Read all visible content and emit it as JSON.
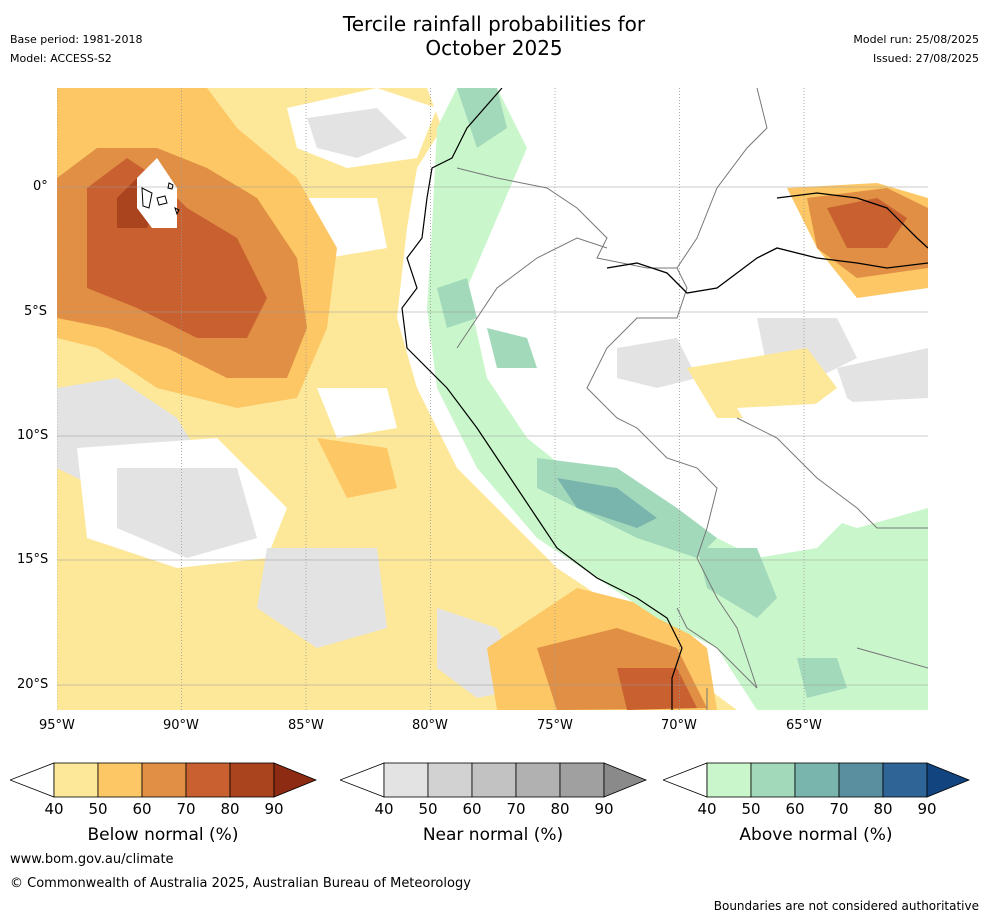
{
  "header": {
    "title_line1": "Tercile rainfall probabilities for",
    "title_line2": "October 2025",
    "base_period": "Base period: 1981-2018",
    "model": "Model: ACCESS-S2",
    "model_run": "Model run: 25/08/2025",
    "issued": "Issued: 27/08/2025"
  },
  "map": {
    "lon_labels": [
      "95°W",
      "90°W",
      "85°W",
      "80°W",
      "75°W",
      "70°W",
      "65°W"
    ],
    "lat_labels": [
      "0°",
      "5°S",
      "10°S",
      "15°S",
      "20°S"
    ]
  },
  "colorbars": [
    {
      "label": "Below normal (%)",
      "ticks": [
        "40",
        "50",
        "60",
        "70",
        "80",
        "90"
      ],
      "colors": [
        "#ffffff",
        "#fde89a",
        "#fcc764",
        "#e08f44",
        "#c8612f",
        "#a9441f",
        "#8c2a12"
      ]
    },
    {
      "label": "Near normal (%)",
      "ticks": [
        "40",
        "50",
        "60",
        "70",
        "80",
        "90"
      ],
      "colors": [
        "#ffffff",
        "#e3e3e3",
        "#d2d2d2",
        "#c2c2c2",
        "#b1b1b1",
        "#a0a0a0",
        "#8a8a8a"
      ]
    },
    {
      "label": "Above normal (%)",
      "ticks": [
        "40",
        "50",
        "60",
        "70",
        "80",
        "90"
      ],
      "colors": [
        "#ffffff",
        "#c9f7cb",
        "#a3d9bb",
        "#7ab5ad",
        "#5a8fa0",
        "#2f6596",
        "#12447f"
      ]
    }
  ],
  "footer": {
    "url": "www.bom.gov.au/climate",
    "copyright": "© Commonwealth of Australia 2025, Australian Bureau of Meteorology",
    "disclaimer": "Boundaries are not considered authoritative"
  }
}
